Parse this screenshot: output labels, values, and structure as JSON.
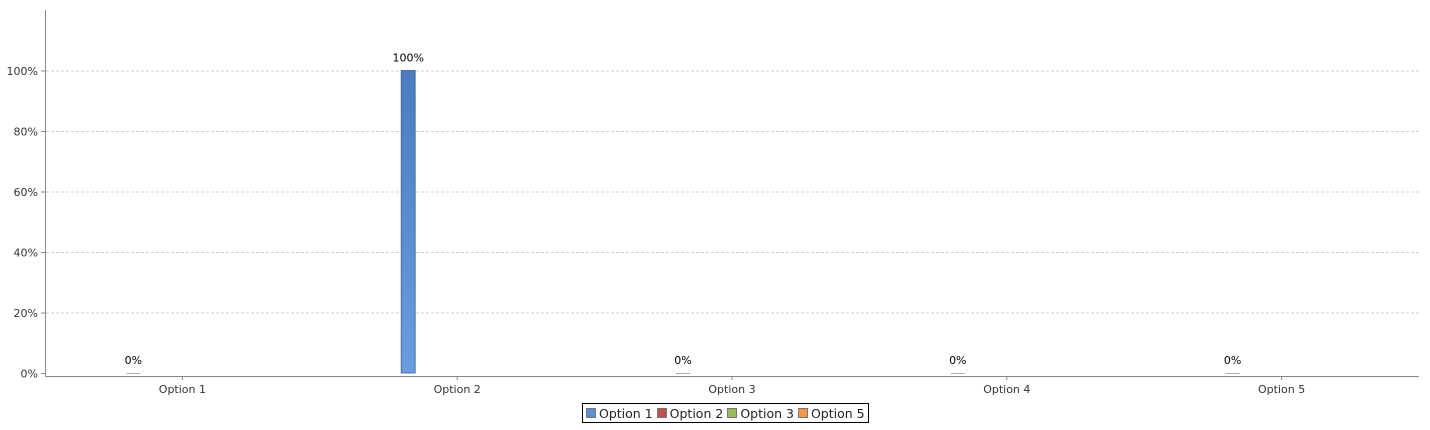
{
  "colors": {
    "option_1": "#5b8fd4",
    "option_2": "#c0504d",
    "option_3": "#9bbb59",
    "option_5": "#f79646"
  },
  "chart_data": {
    "type": "bar",
    "title": "",
    "xlabel": "",
    "ylabel": "",
    "categories": [
      "Option 1",
      "Option 2",
      "Option 3",
      "Option 4",
      "Option 5"
    ],
    "series": [
      {
        "name": "Option 1",
        "color": "#5b8fd4",
        "values": [
          0,
          100,
          0,
          0,
          0
        ],
        "labels": [
          "0%",
          "100%",
          "0%",
          "0%",
          "0%"
        ]
      },
      {
        "name": "Option 2",
        "color": "#c0504d",
        "values": [
          null,
          null,
          null,
          null,
          null
        ]
      },
      {
        "name": "Option 3",
        "color": "#9bbb59",
        "values": [
          null,
          null,
          null,
          null,
          null
        ]
      },
      {
        "name": "Option 5",
        "color": "#f79646",
        "values": [
          null,
          null,
          null,
          null,
          null
        ]
      }
    ],
    "ylim": [
      0,
      120
    ],
    "yticks": [
      0,
      20,
      40,
      60,
      80,
      100
    ],
    "ytick_labels": [
      "0%",
      "20%",
      "40%",
      "60%",
      "80%",
      "100%"
    ],
    "grid": true,
    "legend_position": "bottom-center"
  }
}
